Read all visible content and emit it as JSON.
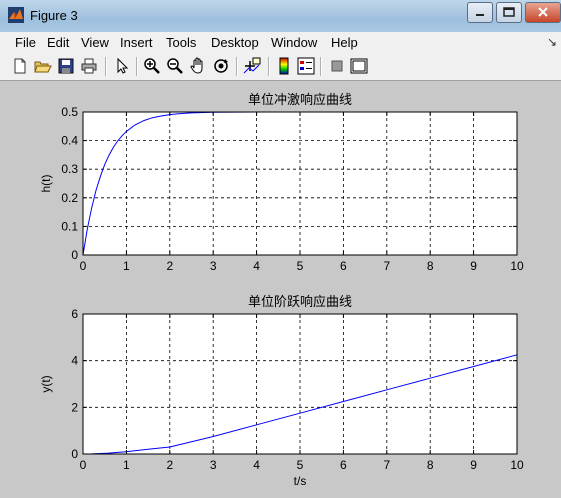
{
  "window": {
    "title": "Figure 3",
    "buttons": [
      "minimize",
      "maximize",
      "close"
    ]
  },
  "menu": {
    "items": [
      "File",
      "Edit",
      "View",
      "Insert",
      "Tools",
      "Desktop",
      "Window",
      "Help"
    ]
  },
  "toolbar": {
    "icons": [
      "new-file-icon",
      "open-folder-icon",
      "save-icon",
      "print-icon",
      "pointer-icon",
      "zoom-in-icon",
      "zoom-out-icon",
      "pan-hand-icon",
      "rotate-3d-icon",
      "data-cursor-icon",
      "colorbar-icon",
      "legend-icon",
      "hide-plot-tools-icon",
      "show-plot-tools-icon"
    ]
  },
  "colors": {
    "line": "#0000ff",
    "axes_bg": "#ffffff",
    "figure_bg": "#c8c8c8"
  },
  "chart_data": [
    {
      "type": "line",
      "title": "单位冲激响应曲线",
      "xlabel": "",
      "ylabel": "h(t)",
      "xlim": [
        0,
        10
      ],
      "ylim": [
        0,
        0.5
      ],
      "xticks": [
        "0",
        "1",
        "2",
        "3",
        "4",
        "5",
        "6",
        "7",
        "8",
        "9",
        "10"
      ],
      "yticks": [
        "0",
        "0.1",
        "0.2",
        "0.3",
        "0.4",
        "0.5"
      ],
      "grid": true,
      "series": [
        {
          "x": [
            0,
            0.1,
            0.2,
            0.3,
            0.4,
            0.5,
            0.6,
            0.7,
            0.8,
            0.9,
            1.0,
            1.2,
            1.4,
            1.6,
            1.8,
            2.0,
            2.2,
            2.5,
            3,
            4,
            5,
            6,
            7,
            8,
            9,
            10
          ],
          "y": [
            0,
            0.091,
            0.165,
            0.226,
            0.275,
            0.316,
            0.349,
            0.377,
            0.399,
            0.417,
            0.432,
            0.455,
            0.47,
            0.48,
            0.486,
            0.491,
            0.494,
            0.497,
            0.499,
            0.5,
            0.5,
            0.5,
            0.5,
            0.5,
            0.5,
            0.5
          ]
        }
      ]
    },
    {
      "type": "line",
      "title": "单位阶跃响应曲线",
      "xlabel": "t/s",
      "ylabel": "y(t)",
      "xlim": [
        0,
        10
      ],
      "ylim": [
        0,
        6
      ],
      "xticks": [
        "0",
        "1",
        "2",
        "3",
        "4",
        "5",
        "6",
        "7",
        "8",
        "9",
        "10"
      ],
      "yticks": [
        "0",
        "2",
        "4",
        "6"
      ],
      "grid": true,
      "series": [
        {
          "x": [
            0,
            0.2,
            0.4,
            0.6,
            0.8,
            1.0,
            1.5,
            2,
            3,
            4,
            5,
            6,
            7,
            8,
            9,
            10
          ],
          "y": [
            0,
            0.005,
            0.02,
            0.04,
            0.067,
            0.1,
            0.2,
            0.3,
            0.75,
            1.25,
            1.75,
            2.25,
            2.75,
            3.25,
            3.75,
            4.25
          ]
        }
      ]
    }
  ]
}
